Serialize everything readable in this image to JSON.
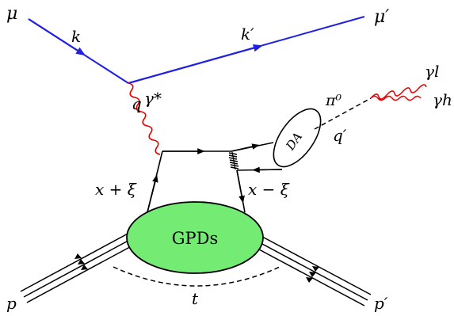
{
  "labels": {
    "mu_in": "μ",
    "mu_out": "μ′",
    "k": "k",
    "k_prime": "k′",
    "q": "q",
    "gamma_star": "γ*",
    "pi0": "π⁰",
    "q_prime": "q′",
    "gamma_l": "γl",
    "gamma_h": "γh",
    "da": "DA",
    "x_plus_xi": "x + ξ",
    "x_minus_xi": "x − ξ",
    "gpds": "GPDs",
    "t": "t",
    "p": "p",
    "p_prime": "p′"
  },
  "colors": {
    "muon_line": "#1f1fe6",
    "photon": "#e60000",
    "blob_fill": "#74ec74",
    "ink": "#000000"
  }
}
